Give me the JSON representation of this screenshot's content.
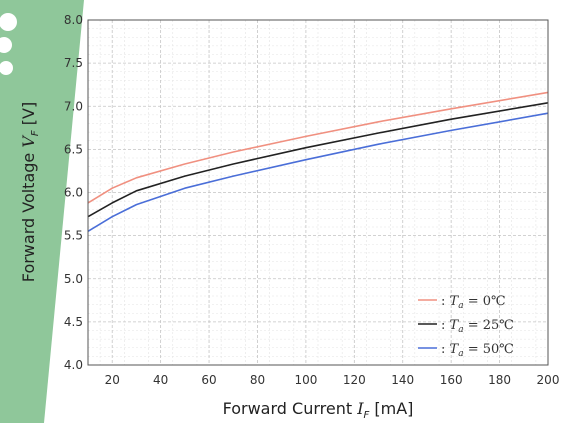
{
  "chart_data": {
    "type": "line",
    "title": "",
    "xlabel": {
      "prefix": "Forward Current ",
      "symbol": "I",
      "sub": "F",
      "suffix": " [mA]"
    },
    "ylabel": {
      "prefix": "Forward Voltage ",
      "symbol": "V",
      "sub": "F",
      "suffix": " [V]"
    },
    "xlim": [
      10,
      200
    ],
    "ylim": [
      4.0,
      8.0
    ],
    "xticks": [
      20,
      40,
      60,
      80,
      100,
      120,
      140,
      160,
      180,
      200
    ],
    "yticks": [
      "4.0",
      "4.5",
      "5.0",
      "5.5",
      "6.0",
      "6.5",
      "7.0",
      "7.5",
      "8.0"
    ],
    "grid": true,
    "legend_position": "bottom-right",
    "x": [
      10,
      20,
      30,
      50,
      70,
      100,
      130,
      160,
      200
    ],
    "series": [
      {
        "name": {
          "sym": "T",
          "sub": "a",
          "text": " = 0℃"
        },
        "color": "#f09080",
        "values": [
          5.88,
          6.05,
          6.17,
          6.33,
          6.47,
          6.65,
          6.82,
          6.97,
          7.16
        ]
      },
      {
        "name": {
          "sym": "T",
          "sub": "a",
          "text": " = 25℃"
        },
        "color": "#222222",
        "values": [
          5.72,
          5.88,
          6.02,
          6.19,
          6.33,
          6.52,
          6.69,
          6.85,
          7.04
        ]
      },
      {
        "name": {
          "sym": "T",
          "sub": "a",
          "text": " = 50℃"
        },
        "color": "#4a6ed8",
        "values": [
          5.55,
          5.72,
          5.86,
          6.05,
          6.19,
          6.38,
          6.56,
          6.72,
          6.92
        ]
      }
    ]
  }
}
